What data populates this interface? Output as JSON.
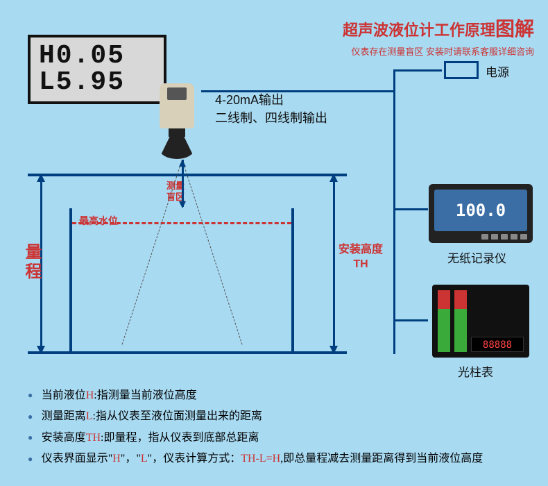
{
  "title": {
    "prefix": "超声波液位计工作原理",
    "suffix": "图解",
    "prefix_color": "#cc3333",
    "suffix_color": "#cc3333",
    "subtitle": "仪表存在测量盲区 安装时请联系客服详细咨询",
    "subtitle_color": "#cc3333"
  },
  "lcd": {
    "line1": "H0.05",
    "line2": "L5.95"
  },
  "output": {
    "line1": "4-20mA输出",
    "line2": "二线制、四线制输出"
  },
  "tank_labels": {
    "blind_zone": "测量\n盲区",
    "max_water": "最高水位",
    "range": "量程",
    "install_height": "安装高度\nTH"
  },
  "devices": {
    "power": "电源",
    "recorder_value": "100.0",
    "recorder_name": "无纸记录仪",
    "bargraph_digits": "88888",
    "bargraph_name": "光柱表"
  },
  "legend": {
    "item1_pre": "当前液位",
    "item1_h": "H",
    "item1_post": ":指测量当前液位高度",
    "item2_pre": "测量距离",
    "item2_l": "L",
    "item2_post": ":指从仪表至液位面测量出来的距离",
    "item3_pre": "安装高度",
    "item3_th": "TH",
    "item3_post": ":即量程，指从仪表到底部总距离",
    "item4_pre": "仪表界面显示",
    "item4_q1": "\"",
    "item4_h": "H",
    "item4_q2": "\"，\"",
    "item4_l": "L",
    "item4_q3": "\"，仪表计算方式：",
    "item4_formula": "TH-L=H",
    "item4_post": ",即总量程减去测量距离得到当前液位高度"
  },
  "colors": {
    "background": "#a8daf2",
    "line_blue": "#003f7f",
    "red": "#cc3333",
    "sensor_body": "#d8d0b8",
    "lcd_bg": "#d8d8d8"
  }
}
